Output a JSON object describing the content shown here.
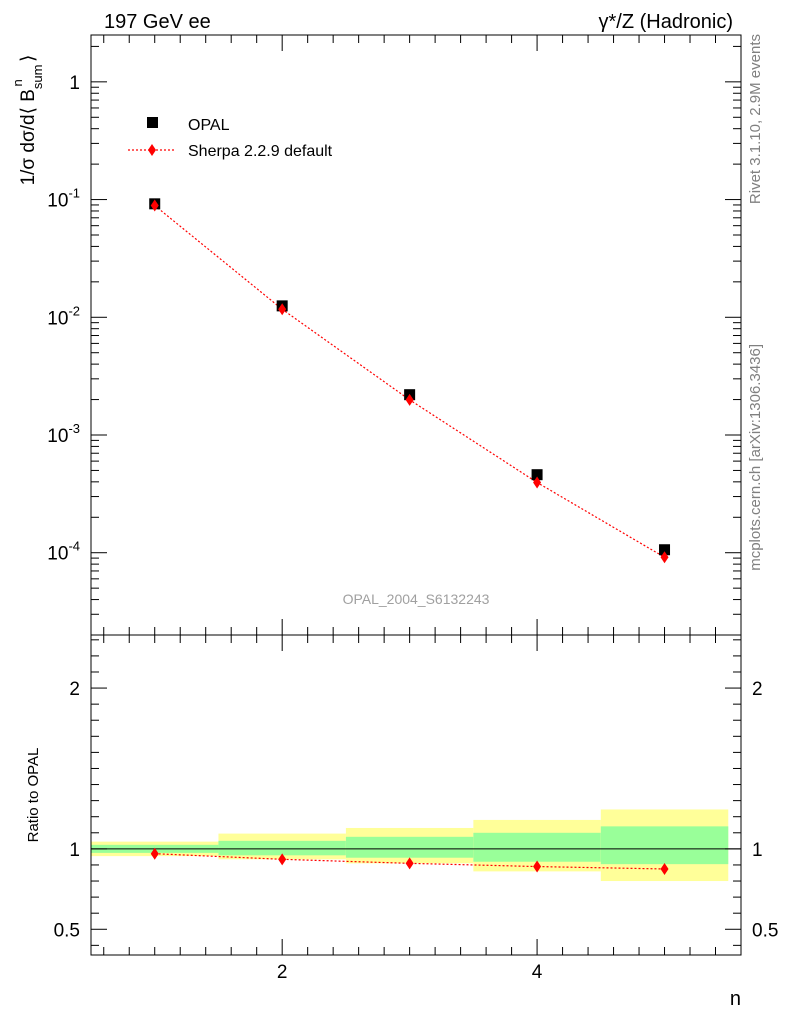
{
  "header": {
    "left": "197 GeV ee",
    "right": "γ*/Z (Hadronic)"
  },
  "side_texts": {
    "rivet": "Rivet 3.1.10,  2.9M events",
    "mcplots": "mcplots.cern.ch [arXiv:1306.3436]"
  },
  "watermark": "OPAL_2004_S6132243",
  "colors": {
    "data": "#000000",
    "mc": "#ff0000",
    "band_inner": "#99ff99",
    "band_outer": "#ffff99"
  },
  "chart_data": [
    {
      "type": "scatter",
      "ylabel": "1/σ dσ/d⟨ B_sum^n ⟩",
      "yscale": "log",
      "ylim": [
        2e-05,
        2.5
      ],
      "xlim": [
        0.5,
        5.6
      ],
      "y_ticks": [
        "10^-4",
        "10^-3",
        "10^-2",
        "10^-1",
        "1"
      ],
      "legend": {
        "placement": "top-left",
        "entries": [
          "OPAL",
          "Sherpa 2.2.9 default"
        ]
      },
      "series": [
        {
          "name": "OPAL",
          "marker": "square",
          "x": [
            1,
            2,
            3,
            4,
            5
          ],
          "y": [
            0.092,
            0.0125,
            0.0022,
            0.00046,
            0.000106
          ]
        },
        {
          "name": "Sherpa 2.2.9 default",
          "marker": "diamond",
          "line": "dotted",
          "x": [
            1,
            2,
            3,
            4,
            5
          ],
          "y": [
            0.089,
            0.0117,
            0.00199,
            0.000395,
            9.15e-05
          ]
        }
      ]
    },
    {
      "type": "line",
      "ylabel": "Ratio to OPAL",
      "xlabel": "n",
      "ylim": [
        0.34,
        2.33
      ],
      "xlim": [
        0.5,
        5.6
      ],
      "x_ticks": [
        "2",
        "4"
      ],
      "y_ticks": [
        "0.5",
        "1",
        "2"
      ],
      "bands": [
        {
          "x_low": 0.5,
          "x_high": 1.5,
          "inner": [
            0.975,
            1.025
          ],
          "outer": [
            0.955,
            1.045
          ]
        },
        {
          "x_low": 1.5,
          "x_high": 2.5,
          "inner": [
            0.96,
            1.05
          ],
          "outer": [
            0.935,
            1.095
          ]
        },
        {
          "x_low": 2.5,
          "x_high": 3.5,
          "inner": [
            0.945,
            1.075
          ],
          "outer": [
            0.91,
            1.13
          ]
        },
        {
          "x_low": 3.5,
          "x_high": 4.5,
          "inner": [
            0.92,
            1.1
          ],
          "outer": [
            0.86,
            1.18
          ]
        },
        {
          "x_low": 4.5,
          "x_high": 5.5,
          "inner": [
            0.905,
            1.14
          ],
          "outer": [
            0.8,
            1.245
          ]
        }
      ],
      "series": [
        {
          "name": "Sherpa 2.2.9 default",
          "x": [
            1,
            2,
            3,
            4,
            5
          ],
          "y": [
            0.97,
            0.935,
            0.91,
            0.89,
            0.875
          ]
        }
      ]
    }
  ]
}
